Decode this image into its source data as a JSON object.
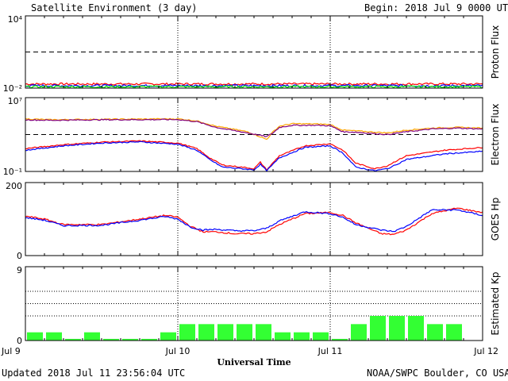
{
  "header": {
    "title": "Satellite Environment (3 day)",
    "begin_label": "Begin:",
    "begin_value": "2018 Jul 9 0000 UTC"
  },
  "footer": {
    "updated": "Updated 2018 Jul 11 23:56:04 UTC",
    "source": "NOAA/SWPC Boulder, CO USA"
  },
  "colors": {
    "red": "#ff0000",
    "blue": "#0000ff",
    "green": "#00ee00",
    "orange": "#ffa500",
    "purple": "#800080",
    "kp_bar": "#33ff33"
  },
  "chart_data": [
    {
      "type": "line",
      "ylabel": "Proton Flux",
      "ytick_labels": [
        "10⁴",
        "10⁻²"
      ],
      "yscale": "log",
      "ylim": [
        0.01,
        10000
      ],
      "threshold": 10,
      "xlim": [
        0,
        72
      ],
      "series": [
        {
          "color": "#ff0000",
          "level": 0.022
        },
        {
          "color": "#0000ff",
          "level": 0.016
        },
        {
          "color": "#00ee00",
          "level": 0.013
        }
      ]
    },
    {
      "type": "line",
      "ylabel": "Electron Flux",
      "ytick_labels": [
        "10⁷",
        "10⁻¹"
      ],
      "yscale": "log",
      "ylim": [
        0.1,
        10000000
      ],
      "threshold": 1000,
      "xlim": [
        0,
        72
      ],
      "series": [
        {
          "color": "#ffa500",
          "x": [
            0,
            4,
            12,
            24,
            27,
            30,
            35,
            38,
            39,
            40,
            42,
            46,
            48,
            50,
            52,
            57,
            60,
            64,
            68,
            72
          ],
          "y": [
            50000,
            40000,
            45000,
            50000,
            30000,
            8000,
            2000,
            300,
            2000,
            8000,
            15000,
            14000,
            12000,
            3000,
            2500,
            1500,
            3000,
            5000,
            6000,
            5000
          ]
        },
        {
          "color": "#800080",
          "x": [
            0,
            4,
            12,
            24,
            27,
            30,
            35,
            38,
            39,
            40,
            42,
            46,
            48,
            50,
            52,
            57,
            60,
            64,
            68,
            72
          ],
          "y": [
            40000,
            35000,
            40000,
            42000,
            25000,
            6000,
            1500,
            600,
            1500,
            6000,
            10000,
            10000,
            9000,
            2000,
            1800,
            1000,
            2000,
            4000,
            5000,
            4000
          ]
        },
        {
          "color": "#ff0000",
          "x": [
            0,
            6,
            12,
            18,
            24,
            27,
            29,
            31,
            34,
            36,
            37,
            38,
            40,
            44,
            48,
            50,
            52,
            55,
            57,
            58,
            60,
            66,
            72
          ],
          "y": [
            30,
            80,
            150,
            200,
            120,
            30,
            3,
            0.5,
            0.3,
            0.2,
            1,
            0.15,
            5,
            60,
            100,
            20,
            0.8,
            0.2,
            0.4,
            1,
            5,
            20,
            40
          ]
        },
        {
          "color": "#0000ff",
          "x": [
            0,
            6,
            12,
            18,
            24,
            27,
            29,
            31,
            34,
            36,
            37,
            38,
            40,
            44,
            48,
            50,
            52,
            55,
            57,
            58,
            60,
            66,
            72
          ],
          "y": [
            20,
            60,
            120,
            160,
            90,
            20,
            2,
            0.3,
            0.2,
            0.15,
            0.6,
            0.12,
            3,
            40,
            60,
            10,
            0.3,
            0.12,
            0.2,
            0.4,
            2,
            8,
            15
          ]
        }
      ]
    },
    {
      "type": "line",
      "ylabel": "GOES Hp",
      "ytick_labels": [
        "200",
        "0"
      ],
      "ylim": [
        0,
        200
      ],
      "xlim": [
        0,
        72
      ],
      "series": [
        {
          "color": "#ff0000",
          "x": [
            0,
            3,
            6,
            12,
            18,
            22,
            24,
            26,
            28,
            30,
            33,
            36,
            38,
            40,
            44,
            48,
            50,
            52,
            56,
            58,
            60,
            64,
            68,
            72
          ],
          "y": [
            108,
            100,
            85,
            85,
            100,
            110,
            105,
            80,
            65,
            65,
            60,
            60,
            65,
            85,
            115,
            118,
            110,
            90,
            60,
            58,
            70,
            115,
            130,
            118
          ]
        },
        {
          "color": "#0000ff",
          "x": [
            0,
            3,
            6,
            12,
            18,
            22,
            24,
            26,
            28,
            30,
            33,
            36,
            38,
            40,
            44,
            48,
            50,
            52,
            56,
            58,
            60,
            64,
            68,
            72
          ],
          "y": [
            104,
            97,
            82,
            83,
            97,
            107,
            100,
            78,
            70,
            72,
            68,
            68,
            75,
            95,
            120,
            115,
            105,
            85,
            70,
            66,
            80,
            125,
            125,
            110
          ]
        }
      ]
    },
    {
      "type": "bar",
      "ylabel": "Estimated Kp",
      "ytick_labels": [
        "9",
        "0"
      ],
      "ylim": [
        0,
        9
      ],
      "xlim": [
        0,
        72
      ],
      "bar_hours": 3,
      "values": [
        1,
        1,
        0.2,
        1,
        0.2,
        0.2,
        0.2,
        1,
        2,
        2,
        2,
        2,
        2,
        1,
        1,
        1,
        0.2,
        2,
        3,
        3,
        3,
        2,
        2
      ],
      "xtick_labels": [
        "Jul 9",
        "Jul 10",
        "Jul 11",
        "Jul 12"
      ],
      "xlabel": "Universal Time"
    }
  ]
}
